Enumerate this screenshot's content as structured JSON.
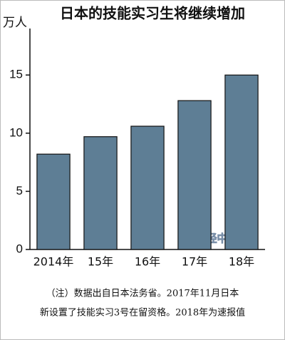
{
  "chart_data": {
    "type": "bar",
    "title": "日本的技能实习生将继续增加",
    "y_unit": "万人",
    "categories": [
      "2014年",
      "15年",
      "16年",
      "17年",
      "18年"
    ],
    "values": [
      8.2,
      9.7,
      10.6,
      12.8,
      15.0
    ],
    "color": "#5e7e95",
    "ylim": [
      0,
      19
    ],
    "yticks": [
      0,
      5,
      10,
      15
    ],
    "watermark": "日经中文网",
    "notes": [
      "（注）数据出自日本法务省。2017年11月日本",
      "新设置了技能实习3号在留资格。2018年为速报值"
    ]
  }
}
